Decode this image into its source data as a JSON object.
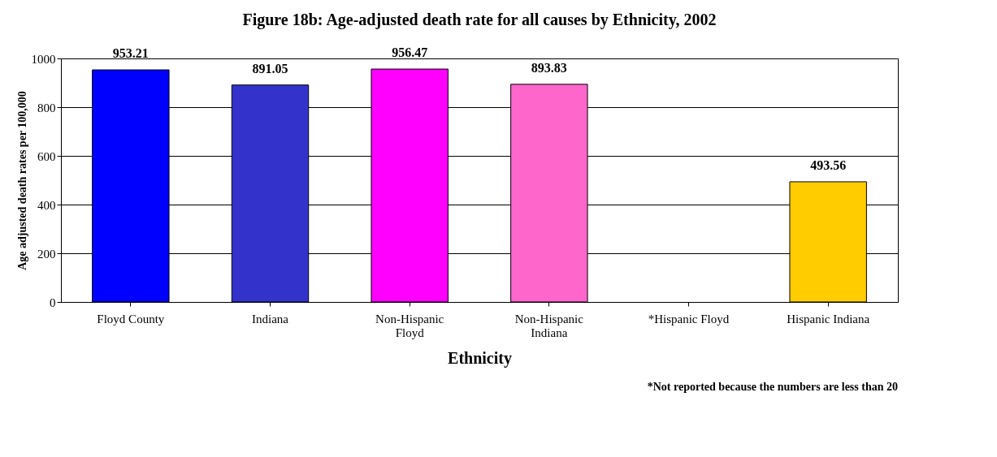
{
  "chart_data": {
    "type": "bar",
    "title": "Figure 18b: Age-adjusted death rate for all causes by Ethnicity, 2002",
    "xlabel": "Ethnicity",
    "ylabel": "Age adjusted death rates per 100,000",
    "categories": [
      "Floyd County",
      "Indiana",
      "Non-Hispanic\nFloyd",
      "Non-Hispanic\nIndiana",
      "*Hispanic Floyd",
      "Hispanic Indiana"
    ],
    "values": [
      953.21,
      891.05,
      956.47,
      893.83,
      null,
      493.56
    ],
    "colors": [
      "#0000ff",
      "#3333cc",
      "#ff00ff",
      "#ff66cc",
      "#999999",
      "#ffcc00"
    ],
    "ylim": [
      0,
      1000
    ],
    "yticks": [
      0,
      200,
      400,
      600,
      800,
      1000
    ],
    "grid": "y",
    "data_labels": true,
    "legend": false,
    "annotations": [
      "*Not reported because the numbers are less than 20"
    ]
  }
}
